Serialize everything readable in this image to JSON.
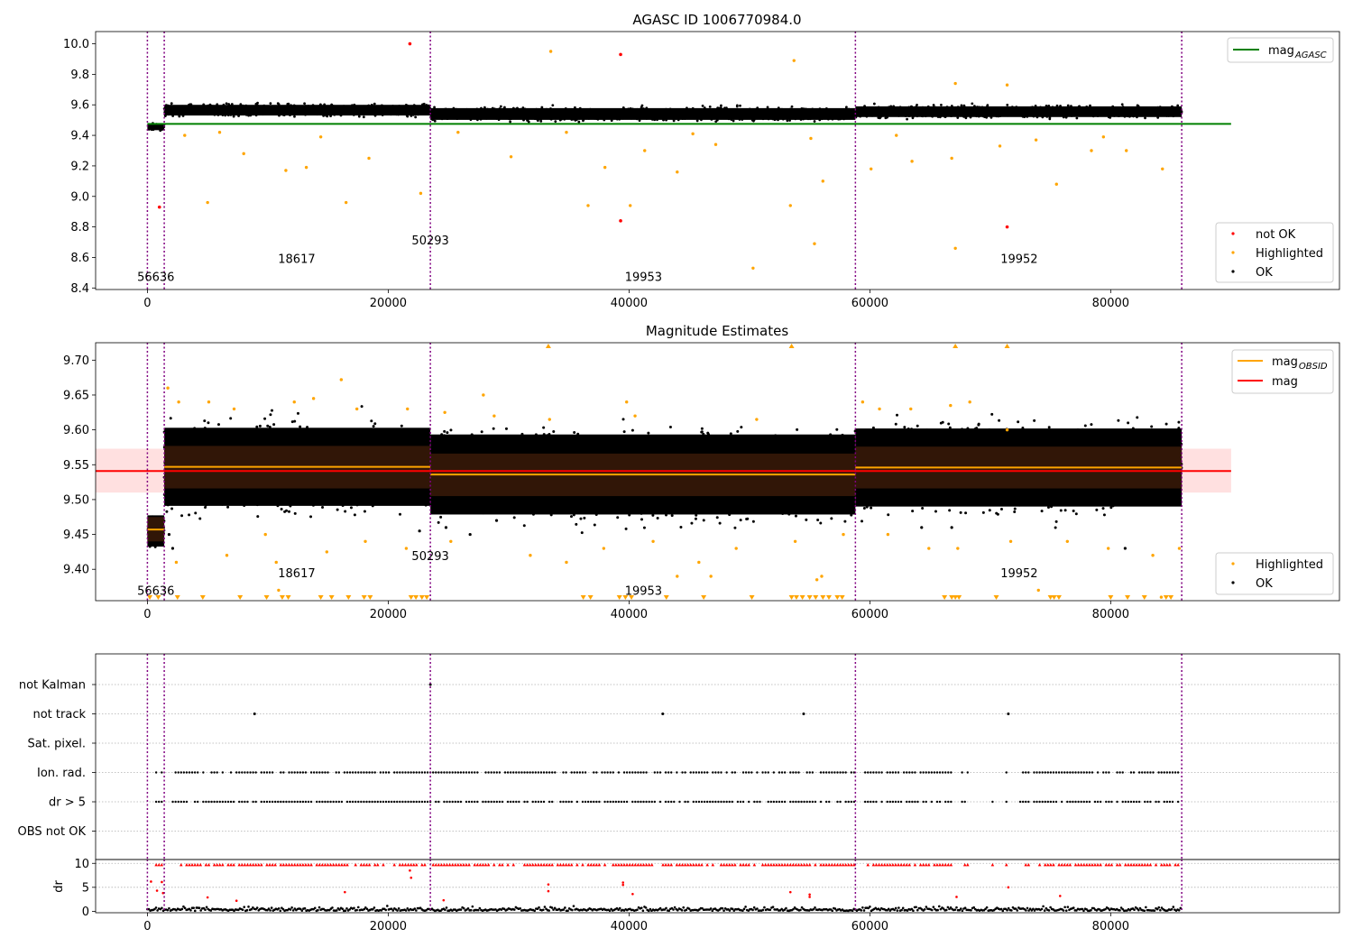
{
  "figure_title": "AGASC ID 1006770984.0",
  "colors": {
    "ok": "#000000",
    "highlighted": "#ffa500",
    "not_ok": "#ff0000",
    "mag_agasc": "#008000",
    "mag_obsid": "#ffa500",
    "mag": "#ff0000",
    "obs_boundary": "#800080"
  },
  "chart_data": [
    {
      "id": "agasc",
      "type": "scatter",
      "title": "AGASC ID 1006770984.0",
      "xlim": [
        -4300,
        99000
      ],
      "ylim": [
        8.39,
        10.08
      ],
      "yticks": [
        8.4,
        8.6,
        8.8,
        9.0,
        9.2,
        9.4,
        9.6,
        9.8,
        10.0
      ],
      "ytick_labels": [
        "8.4",
        "8.6",
        "8.8",
        "9.0",
        "9.2",
        "9.4",
        "9.6",
        "9.8",
        "10.0"
      ],
      "xticks": [
        0,
        20000,
        40000,
        60000,
        80000
      ],
      "xtick_labels": [
        "0",
        "20000",
        "40000",
        "60000",
        "80000"
      ],
      "obs_boundaries": [
        0,
        1400,
        23500,
        58800,
        85900
      ],
      "obsid_labels": [
        {
          "text": "56636",
          "x": 700,
          "y": 8.475
        },
        {
          "text": "18617",
          "x": 12400,
          "y": 8.595
        },
        {
          "text": "50293",
          "x": 23500,
          "y": 8.715
        },
        {
          "text": "19953",
          "x": 41200,
          "y": 8.475
        },
        {
          "text": "19952",
          "x": 72400,
          "y": 8.595
        }
      ],
      "segments": [
        {
          "x0": 0,
          "x1": 1400,
          "y_center": 9.455,
          "half_width": 0.03
        },
        {
          "x0": 1400,
          "x1": 23500,
          "y_center": 9.565,
          "half_width": 0.05
        },
        {
          "x0": 23500,
          "x1": 58800,
          "y_center": 9.54,
          "half_width": 0.055
        },
        {
          "x0": 58800,
          "x1": 85900,
          "y_center": 9.555,
          "half_width": 0.05
        }
      ],
      "lines": [
        {
          "name": "mag$_{AGASC}$",
          "y": 9.475,
          "x0": 0,
          "x1": 90000,
          "color": "#008000"
        }
      ],
      "highlighted_points": [
        [
          5000,
          8.96
        ],
        [
          16500,
          8.96
        ],
        [
          22700,
          9.02
        ],
        [
          33500,
          9.95
        ],
        [
          36600,
          8.94
        ],
        [
          40100,
          8.94
        ],
        [
          50300,
          8.53
        ],
        [
          53400,
          8.94
        ],
        [
          53700,
          9.89
        ],
        [
          55400,
          8.69
        ],
        [
          56100,
          9.1
        ],
        [
          67100,
          8.66
        ],
        [
          67100,
          9.74
        ],
        [
          71400,
          9.73
        ],
        [
          75500,
          9.08
        ],
        [
          84300,
          9.18
        ],
        [
          8000,
          9.28
        ],
        [
          11500,
          9.17
        ],
        [
          13200,
          9.19
        ],
        [
          18400,
          9.25
        ],
        [
          30200,
          9.26
        ],
        [
          38000,
          9.19
        ],
        [
          41300,
          9.3
        ],
        [
          44000,
          9.16
        ],
        [
          47200,
          9.34
        ],
        [
          60100,
          9.18
        ],
        [
          63500,
          9.23
        ],
        [
          66800,
          9.25
        ],
        [
          70800,
          9.33
        ],
        [
          78400,
          9.3
        ],
        [
          81300,
          9.3
        ],
        [
          3100,
          9.4
        ],
        [
          6000,
          9.42
        ],
        [
          14400,
          9.39
        ],
        [
          25800,
          9.42
        ],
        [
          34800,
          9.42
        ],
        [
          45300,
          9.41
        ],
        [
          55100,
          9.38
        ],
        [
          62200,
          9.4
        ],
        [
          73800,
          9.37
        ],
        [
          79400,
          9.39
        ]
      ],
      "not_ok_points": [
        [
          21800,
          10.0
        ],
        [
          39300,
          9.93
        ],
        [
          39300,
          8.84
        ],
        [
          71400,
          8.8
        ],
        [
          1000,
          8.93
        ]
      ],
      "legend_lines_position": "upper right",
      "legend_points_position": "lower right",
      "legend_points": [
        {
          "label": "not OK",
          "color": "#ff0000"
        },
        {
          "label": "Highlighted",
          "color": "#ffa500"
        },
        {
          "label": "OK",
          "color": "#000000"
        }
      ]
    },
    {
      "id": "estimates",
      "type": "scatter",
      "title": "Magnitude Estimates",
      "xlim": [
        -4300,
        99000
      ],
      "ylim": [
        9.355,
        9.725
      ],
      "yticks": [
        9.4,
        9.45,
        9.5,
        9.55,
        9.6,
        9.65,
        9.7
      ],
      "ytick_labels": [
        "9.40",
        "9.45",
        "9.50",
        "9.55",
        "9.60",
        "9.65",
        "9.70"
      ],
      "xticks": [
        0,
        20000,
        40000,
        60000,
        80000
      ],
      "xtick_labels": [
        "0",
        "20000",
        "40000",
        "60000",
        "80000"
      ],
      "obs_boundaries": [
        0,
        1400,
        23500,
        58800,
        85900
      ],
      "obsid_labels": [
        {
          "text": "56636",
          "x": 700,
          "y": 9.37
        },
        {
          "text": "18617",
          "x": 12400,
          "y": 9.395
        },
        {
          "text": "50293",
          "x": 23500,
          "y": 9.42
        },
        {
          "text": "19953",
          "x": 41200,
          "y": 9.37
        },
        {
          "text": "19952",
          "x": 72400,
          "y": 9.395
        }
      ],
      "mag": {
        "value": 9.541,
        "band": [
          9.51,
          9.573
        ],
        "x0": -4300,
        "x1": 90000
      },
      "obsid_mags": [
        {
          "x0": 0,
          "x1": 1400,
          "value": 9.457,
          "band": [
            9.44,
            9.475
          ]
        },
        {
          "x0": 1400,
          "x1": 23500,
          "value": 9.547,
          "band": [
            9.516,
            9.577
          ]
        },
        {
          "x0": 23500,
          "x1": 58800,
          "value": 9.536,
          "band": [
            9.505,
            9.566
          ]
        },
        {
          "x0": 58800,
          "x1": 85900,
          "value": 9.546,
          "band": [
            9.516,
            9.576
          ]
        }
      ],
      "segments": [
        {
          "x0": 0,
          "x1": 1400,
          "y_center": 9.455,
          "half_width": 0.032
        },
        {
          "x0": 1400,
          "x1": 23500,
          "y_center": 9.547,
          "half_width": 0.08
        },
        {
          "x0": 23500,
          "x1": 58800,
          "y_center": 9.536,
          "half_width": 0.082
        },
        {
          "x0": 58800,
          "x1": 85900,
          "y_center": 9.546,
          "half_width": 0.08
        }
      ],
      "highlighted_points": [
        [
          1700,
          9.66
        ],
        [
          2600,
          9.64
        ],
        [
          5100,
          9.64
        ],
        [
          7200,
          9.63
        ],
        [
          12200,
          9.64
        ],
        [
          13800,
          9.645
        ],
        [
          16100,
          9.672
        ],
        [
          17400,
          9.63
        ],
        [
          21600,
          9.63
        ],
        [
          24700,
          9.625
        ],
        [
          27900,
          9.65
        ],
        [
          28800,
          9.62
        ],
        [
          33400,
          9.615
        ],
        [
          39800,
          9.64
        ],
        [
          40500,
          9.62
        ],
        [
          50600,
          9.615
        ],
        [
          59400,
          9.64
        ],
        [
          60800,
          9.63
        ],
        [
          63400,
          9.63
        ],
        [
          66700,
          9.635
        ],
        [
          68300,
          9.64
        ],
        [
          71400,
          9.6
        ],
        [
          2400,
          9.41
        ],
        [
          6600,
          9.42
        ],
        [
          9800,
          9.45
        ],
        [
          10700,
          9.41
        ],
        [
          14900,
          9.425
        ],
        [
          18100,
          9.44
        ],
        [
          21500,
          9.43
        ],
        [
          25200,
          9.44
        ],
        [
          31800,
          9.42
        ],
        [
          34800,
          9.41
        ],
        [
          37900,
          9.43
        ],
        [
          42000,
          9.44
        ],
        [
          45800,
          9.41
        ],
        [
          48900,
          9.43
        ],
        [
          53800,
          9.44
        ],
        [
          56000,
          9.39
        ],
        [
          57800,
          9.45
        ],
        [
          61500,
          9.45
        ],
        [
          64900,
          9.43
        ],
        [
          67300,
          9.43
        ],
        [
          71700,
          9.44
        ],
        [
          76400,
          9.44
        ],
        [
          79800,
          9.43
        ],
        [
          83500,
          9.42
        ],
        [
          85700,
          9.43
        ],
        [
          44000,
          9.39
        ],
        [
          55600,
          9.385
        ],
        [
          46800,
          9.39
        ],
        [
          10900,
          9.37
        ],
        [
          74000,
          9.37
        ],
        [
          84200,
          9.36
        ]
      ],
      "extra_black_points": [
        [
          1800,
          9.45
        ],
        [
          2100,
          9.43
        ],
        [
          22600,
          9.455
        ],
        [
          29000,
          9.47
        ],
        [
          24800,
          9.46
        ],
        [
          26800,
          9.45
        ],
        [
          64300,
          9.46
        ],
        [
          66800,
          9.46
        ],
        [
          81200,
          9.43
        ]
      ],
      "clip_top": [
        33300,
        53500,
        67100,
        71400
      ],
      "clip_bottom": [
        200,
        900,
        2500,
        4600,
        7700,
        9900,
        11200,
        11700,
        14400,
        15300,
        16700,
        18000,
        18500,
        21900,
        22300,
        22800,
        23200,
        36200,
        36800,
        39200,
        39700,
        40200,
        43100,
        46200,
        50200,
        53500,
        53900,
        54400,
        55000,
        55500,
        56100,
        56600,
        57300,
        57700,
        66200,
        66800,
        67100,
        67400,
        70500,
        75000,
        75300,
        75700,
        80000,
        81400,
        82800,
        84600,
        85000
      ],
      "legend_lines_position": "upper right",
      "legend_points_position": "lower right",
      "legend_lines": [
        {
          "label": "mag$_{OBSID}$",
          "color": "#ffa500"
        },
        {
          "label": "mag",
          "color": "#ff0000"
        }
      ],
      "legend_points": [
        {
          "label": "Highlighted",
          "color": "#ffa500"
        },
        {
          "label": "OK",
          "color": "#000000"
        }
      ]
    },
    {
      "id": "flags",
      "type": "scatter",
      "xlim": [
        -4300,
        99000
      ],
      "categories": [
        "not Kalman",
        "not track",
        "Sat. pixel.",
        "Ion. rad.",
        "dr > 5",
        "OBS not OK"
      ],
      "obs_boundaries": [
        0,
        1400,
        23500,
        58800,
        85900
      ],
      "flag_points": {
        "not Kalman": [
          23500
        ],
        "not track": [
          8900,
          42800,
          54500,
          71500
        ],
        "Sat. pixel.": [],
        "Ion. rad.": "dense",
        "dr > 5": "dense",
        "OBS not OK": []
      },
      "flag_gaps": [
        [
          0,
          500
        ],
        [
          1400,
          2000
        ],
        [
          58800,
          59400
        ],
        [
          66900,
          67500
        ],
        [
          68200,
          70000
        ],
        [
          70200,
          71300
        ],
        [
          71500,
          72300
        ]
      ]
    },
    {
      "id": "dr",
      "type": "scatter",
      "ylabel": "dr",
      "ylim": [
        -0.3,
        10.8
      ],
      "yticks": [
        0,
        5,
        10
      ],
      "ytick_labels": [
        "0",
        "5",
        "10"
      ],
      "xlim": [
        -4300,
        99000
      ],
      "xticks": [
        0,
        20000,
        40000,
        60000,
        80000
      ],
      "xtick_labels": [
        "0",
        "20000",
        "40000",
        "60000",
        "80000"
      ],
      "obs_boundaries": [
        0,
        1400,
        23500,
        58800,
        85900
      ],
      "red_points": [
        [
          300,
          6.2
        ],
        [
          800,
          4.3
        ],
        [
          1200,
          6.1
        ],
        [
          1300,
          3.8
        ],
        [
          21800,
          8.5
        ],
        [
          21900,
          7.0
        ],
        [
          33300,
          5.6
        ],
        [
          33300,
          4.2
        ],
        [
          39500,
          6.0
        ],
        [
          39500,
          5.5
        ],
        [
          40300,
          3.6
        ],
        [
          53400,
          4.0
        ],
        [
          55000,
          3.5
        ],
        [
          55000,
          3.0
        ],
        [
          71500,
          5.0
        ],
        [
          75800,
          3.2
        ],
        [
          5000,
          2.9
        ],
        [
          16400,
          4.0
        ],
        [
          67200,
          3.0
        ],
        [
          7400,
          2.2
        ],
        [
          24600,
          2.3
        ]
      ]
    }
  ]
}
